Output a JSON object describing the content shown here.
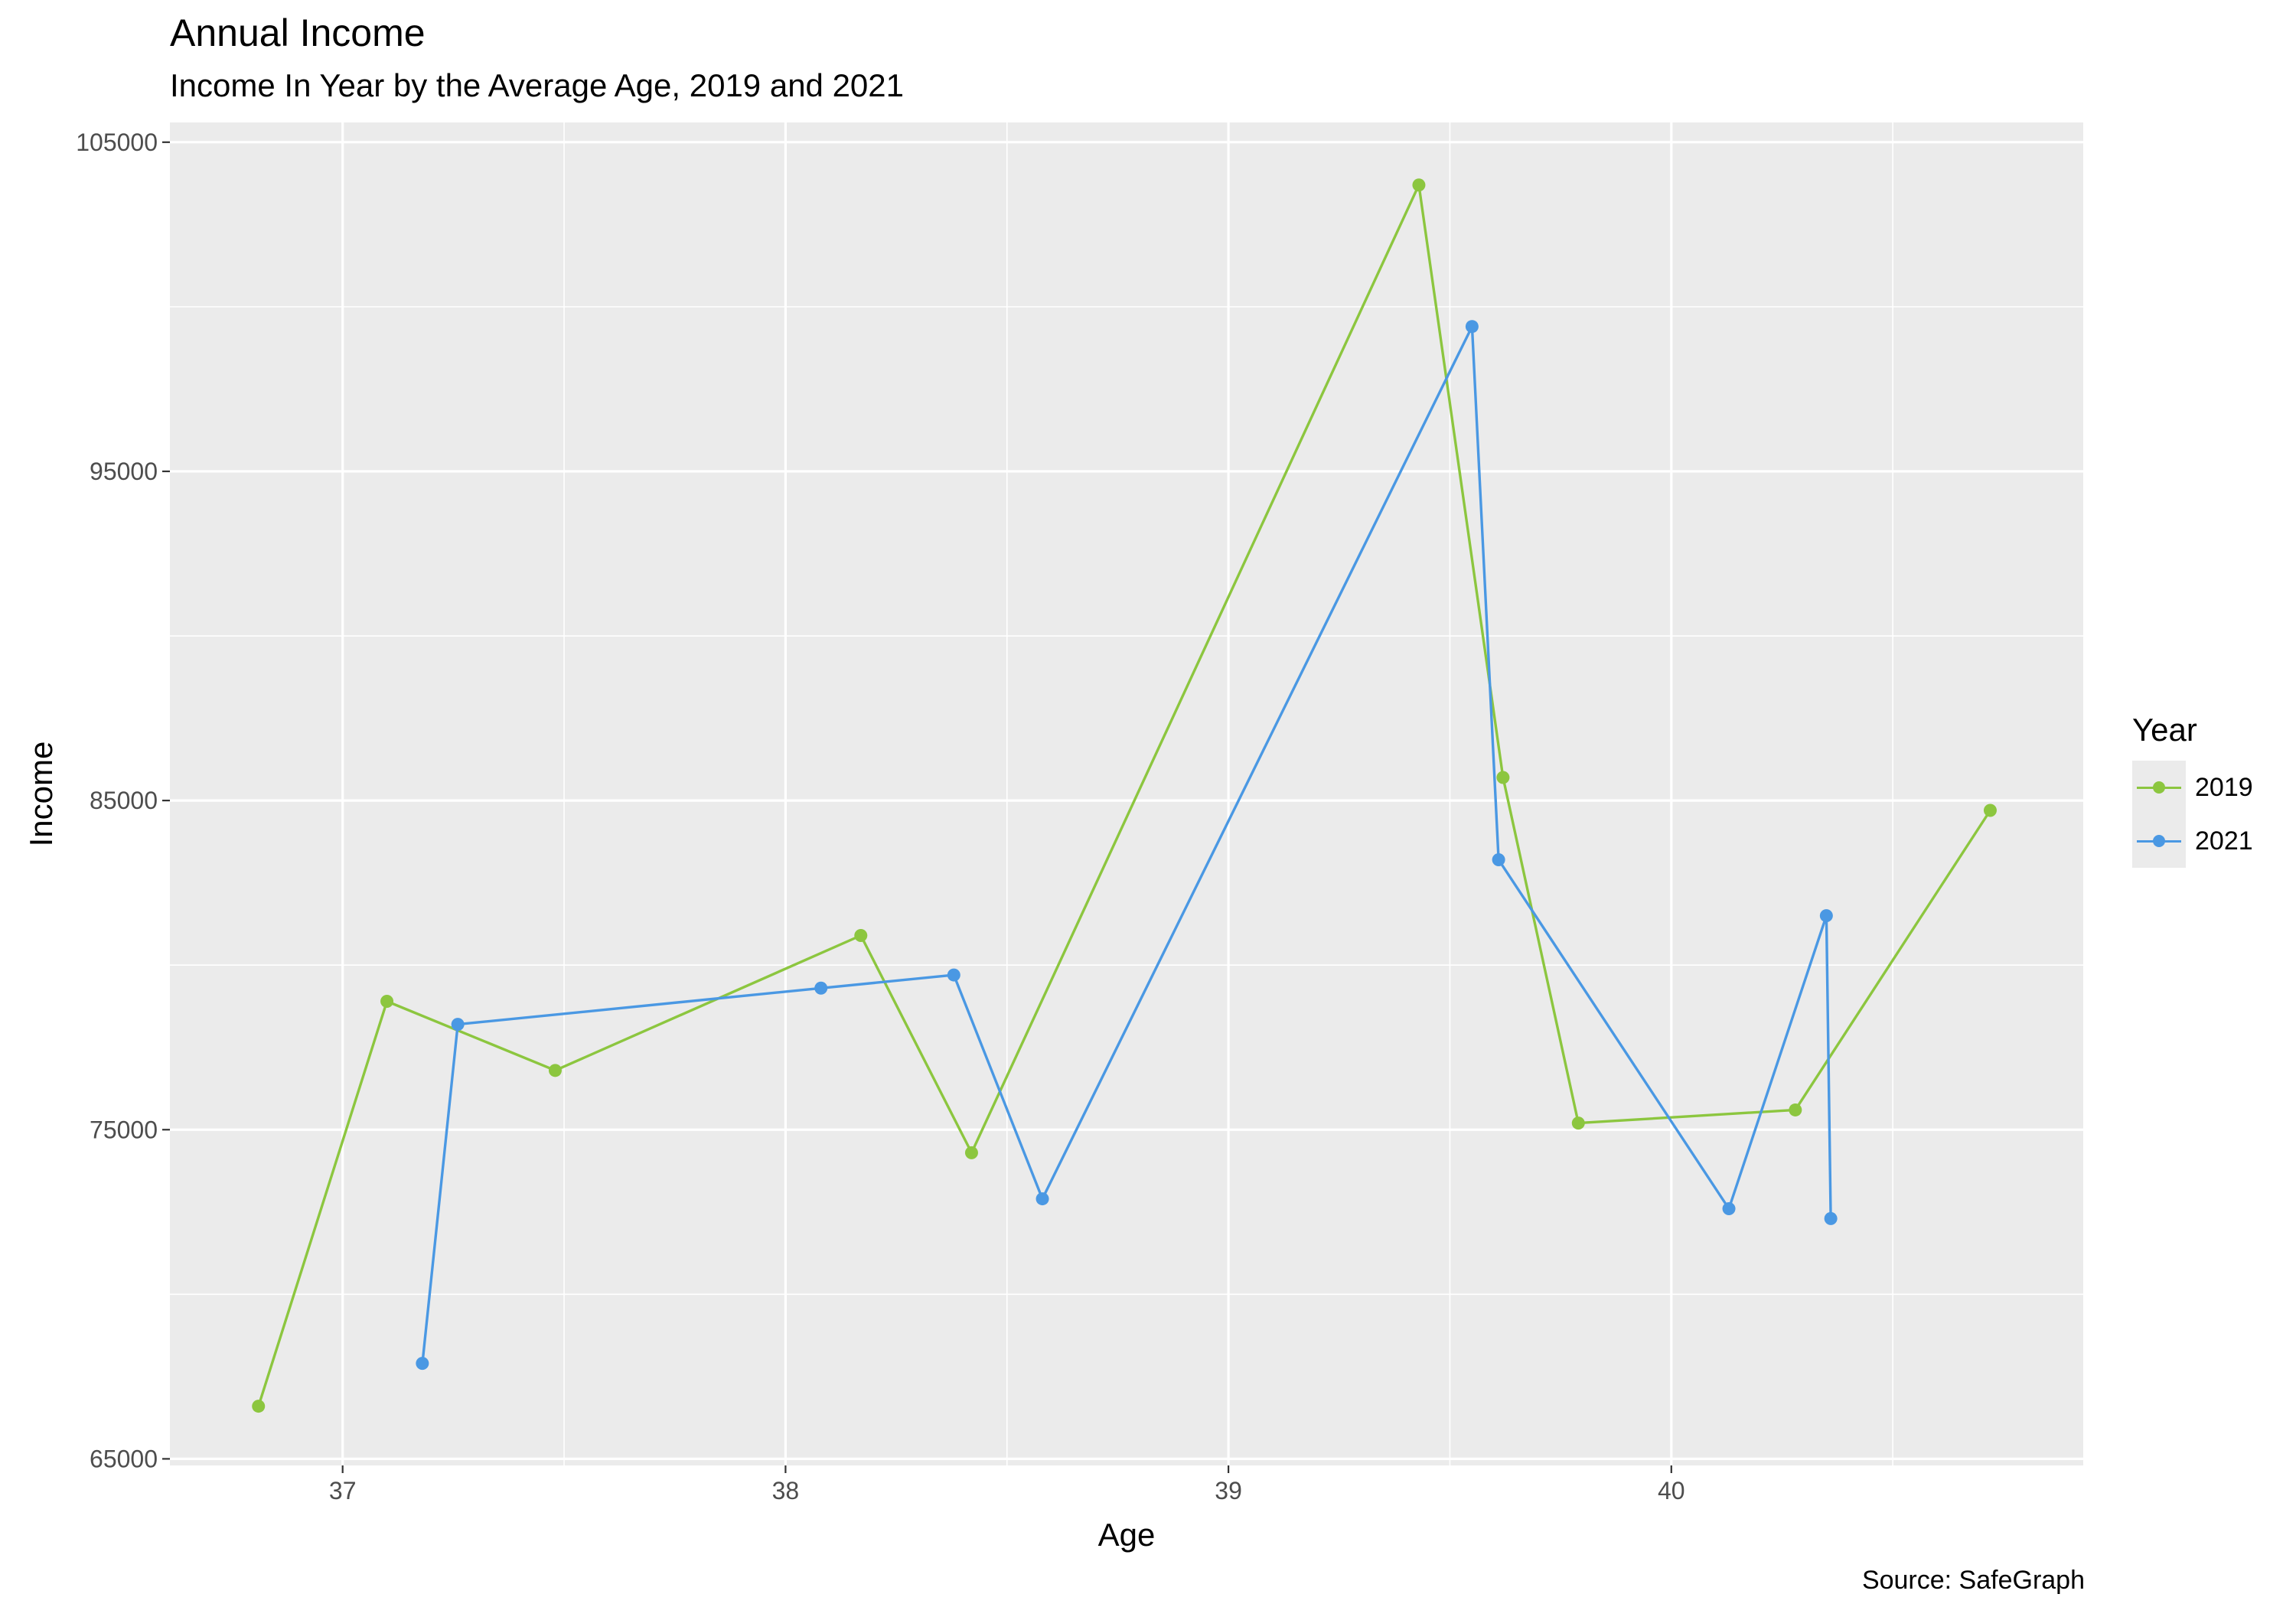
{
  "chart_data": {
    "type": "line",
    "title": "Annual Income",
    "subtitle": "Income In Year by the Average Age, 2019 and 2021",
    "xlabel": "Age",
    "ylabel": "Income",
    "caption": "Source: SafeGraph",
    "xlim": [
      36.61,
      40.93
    ],
    "ylim": [
      64800,
      105600
    ],
    "x_ticks": [
      37,
      38,
      39,
      40
    ],
    "x_tick_labels": [
      "37",
      "38",
      "39",
      "40"
    ],
    "y_ticks": [
      65000,
      75000,
      85000,
      95000,
      105000
    ],
    "y_tick_labels": [
      "65000",
      "75000",
      "85000",
      "95000",
      "105000"
    ],
    "grid": true,
    "legend": {
      "title": "Year",
      "position": "right"
    },
    "series": [
      {
        "name": "2019",
        "color": "#8cc63f",
        "points": [
          {
            "x": 36.81,
            "y": 66600
          },
          {
            "x": 37.1,
            "y": 78900
          },
          {
            "x": 37.48,
            "y": 76800
          },
          {
            "x": 38.17,
            "y": 80900
          },
          {
            "x": 38.42,
            "y": 74300
          },
          {
            "x": 39.43,
            "y": 103700
          },
          {
            "x": 39.62,
            "y": 85700
          },
          {
            "x": 39.79,
            "y": 75200
          },
          {
            "x": 40.28,
            "y": 75600
          },
          {
            "x": 40.72,
            "y": 84700
          }
        ]
      },
      {
        "name": "2021",
        "color": "#4a98e3",
        "points": [
          {
            "x": 37.18,
            "y": 67900
          },
          {
            "x": 37.26,
            "y": 78200
          },
          {
            "x": 38.08,
            "y": 79300
          },
          {
            "x": 38.38,
            "y": 79700
          },
          {
            "x": 38.58,
            "y": 72900
          },
          {
            "x": 39.55,
            "y": 99400
          },
          {
            "x": 39.61,
            "y": 83200
          },
          {
            "x": 40.13,
            "y": 72600
          },
          {
            "x": 40.35,
            "y": 81500
          },
          {
            "x": 40.36,
            "y": 72300
          }
        ]
      }
    ]
  }
}
